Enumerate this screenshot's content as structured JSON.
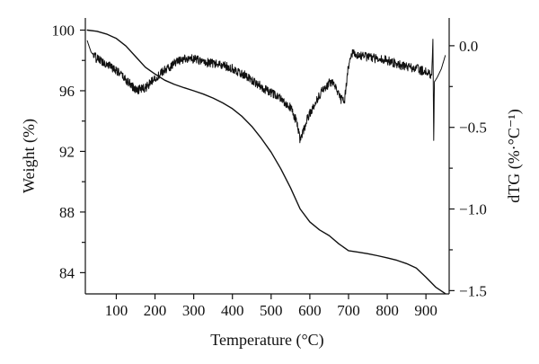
{
  "chart_data": {
    "type": "line",
    "title": "",
    "xlabel": "Temperature (°C)",
    "ylabel_left": "Weight (%)",
    "ylabel_right": "dTG (%·°C⁻¹)",
    "xlim": [
      20,
      960
    ],
    "ylim_left": [
      82.6,
      100.8
    ],
    "ylim_right": [
      -1.52,
      0.17
    ],
    "xticks": [
      100,
      200,
      300,
      400,
      500,
      600,
      700,
      800,
      900
    ],
    "yticks_left": [
      84,
      88,
      92,
      96,
      100
    ],
    "yticks_right": [
      -1.5,
      -1.0,
      -0.5,
      0.0
    ],
    "xtick_labels": [
      "100",
      "200",
      "300",
      "400",
      "500",
      "600",
      "700",
      "800",
      "900"
    ],
    "ytick_labels_left": [
      "84",
      "88",
      "92",
      "96",
      "100"
    ],
    "ytick_labels_right": [
      "−1.5",
      "−1.0",
      "−0.5",
      "0.0"
    ],
    "grid": false,
    "legend": "none",
    "series": [
      {
        "axis": "left",
        "x": [
          25,
          50,
          75,
          100,
          125,
          150,
          175,
          200,
          225,
          250,
          275,
          300,
          325,
          350,
          375,
          400,
          425,
          450,
          475,
          500,
          525,
          550,
          575,
          600,
          625,
          650,
          675,
          700,
          725,
          750,
          775,
          800,
          825,
          850,
          875,
          900,
          925,
          950
        ],
        "y": [
          100.0,
          99.92,
          99.74,
          99.45,
          98.95,
          98.25,
          97.55,
          97.1,
          96.7,
          96.42,
          96.2,
          96.0,
          95.78,
          95.52,
          95.2,
          94.82,
          94.3,
          93.65,
          92.85,
          91.95,
          90.85,
          89.6,
          88.2,
          87.35,
          86.82,
          86.45,
          85.9,
          85.45,
          85.35,
          85.25,
          85.12,
          84.98,
          84.82,
          84.6,
          84.3,
          83.7,
          83.05,
          82.62
        ]
      },
      {
        "axis": "right",
        "x": [
          25,
          35,
          50,
          75,
          100,
          125,
          150,
          175,
          200,
          225,
          250,
          275,
          300,
          325,
          350,
          375,
          400,
          425,
          450,
          475,
          500,
          525,
          550,
          565,
          575,
          580,
          590,
          600,
          615,
          630,
          650,
          660,
          670,
          680,
          690,
          700,
          710,
          725,
          750,
          775,
          800,
          825,
          850,
          875,
          900,
          915,
          918,
          920,
          922,
          925,
          930,
          940,
          950
        ],
        "y": [
          0.03,
          -0.04,
          -0.08,
          -0.11,
          -0.15,
          -0.21,
          -0.27,
          -0.26,
          -0.2,
          -0.15,
          -0.11,
          -0.08,
          -0.08,
          -0.1,
          -0.11,
          -0.12,
          -0.14,
          -0.17,
          -0.21,
          -0.25,
          -0.29,
          -0.32,
          -0.38,
          -0.46,
          -0.58,
          -0.55,
          -0.47,
          -0.41,
          -0.35,
          -0.28,
          -0.23,
          -0.22,
          -0.28,
          -0.33,
          -0.33,
          -0.12,
          -0.05,
          -0.06,
          -0.07,
          -0.08,
          -0.09,
          -0.11,
          -0.13,
          -0.14,
          -0.16,
          -0.18,
          0.04,
          -0.58,
          -0.22,
          -0.21,
          -0.19,
          -0.14,
          -0.06
        ]
      }
    ]
  }
}
